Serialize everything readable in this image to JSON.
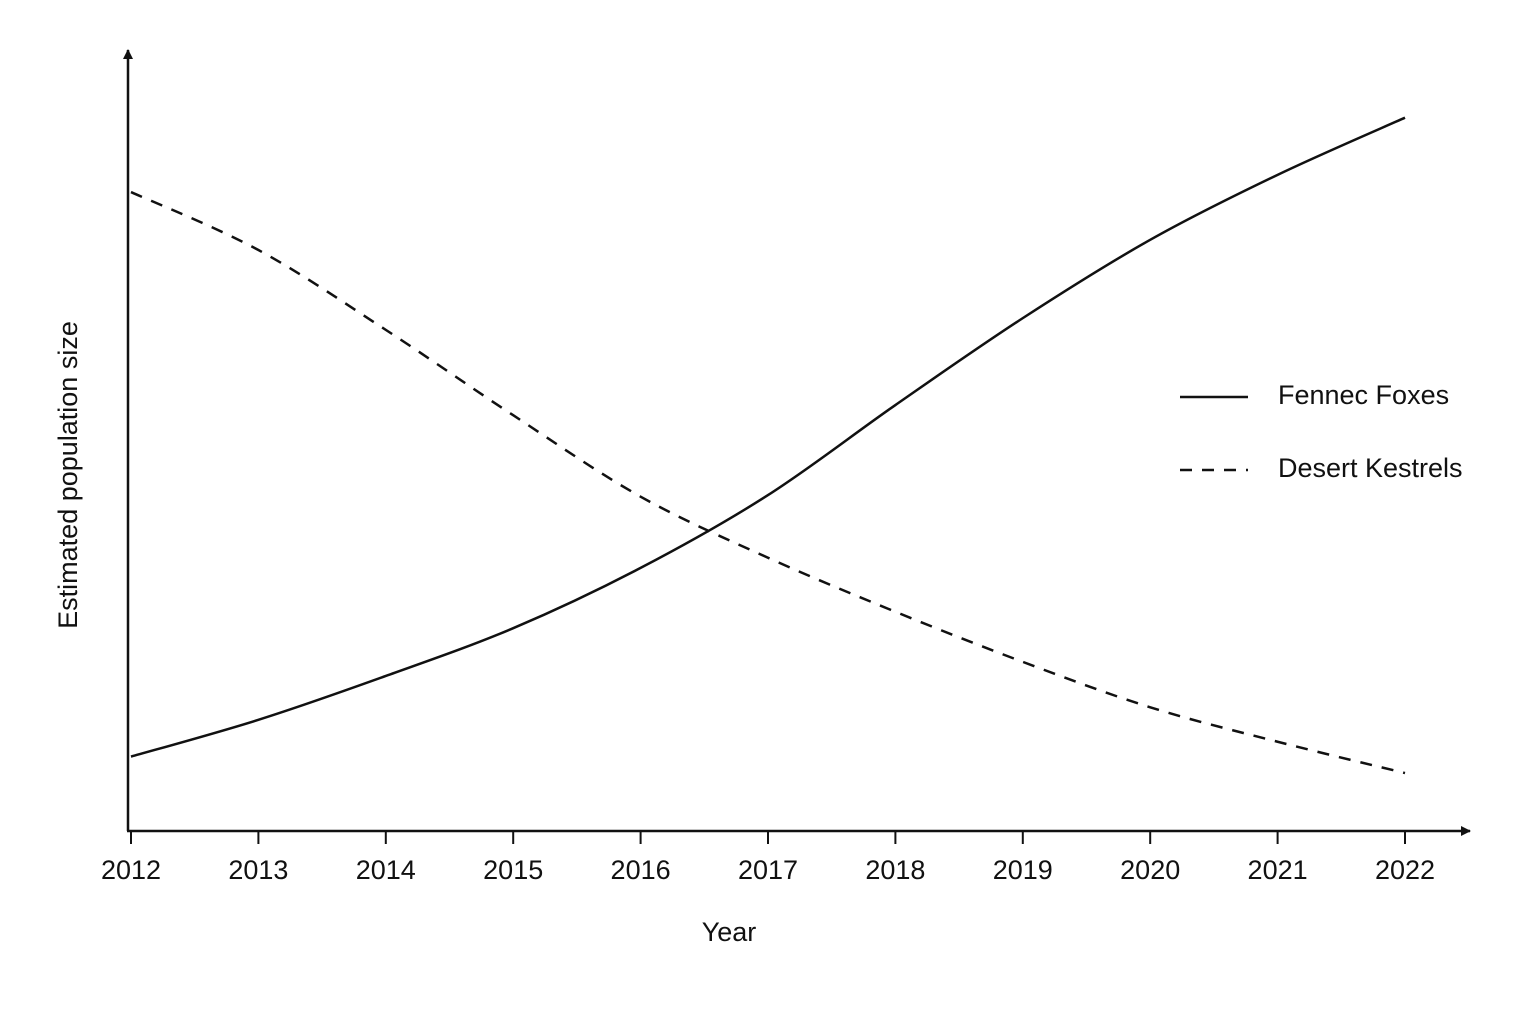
{
  "chart_data": {
    "type": "line",
    "x_label": "Year",
    "y_label": "Estimated population size",
    "x": [
      2012,
      2013,
      2014,
      2015,
      2016,
      2017,
      2018,
      2019,
      2020,
      2021,
      2022
    ],
    "xlim": [
      2012,
      2022
    ],
    "xticks": [
      2012,
      2013,
      2014,
      2015,
      2016,
      2017,
      2018,
      2019,
      2020,
      2021,
      2022
    ],
    "ylim": [
      0,
      100
    ],
    "legend": "right",
    "series": [
      {
        "name": "Fennec Foxes",
        "color": "#111111",
        "dash": "solid",
        "values": [
          9.5,
          14.2,
          19.8,
          25.9,
          33.6,
          42.9,
          54.4,
          65.5,
          75.5,
          83.8,
          91.1
        ]
      },
      {
        "name": "Desert Kestrels",
        "color": "#111111",
        "dash": "dashed",
        "values": [
          81.6,
          74.2,
          64.0,
          53.1,
          42.7,
          34.9,
          28.0,
          21.6,
          15.8,
          11.4,
          7.4
        ]
      }
    ]
  }
}
